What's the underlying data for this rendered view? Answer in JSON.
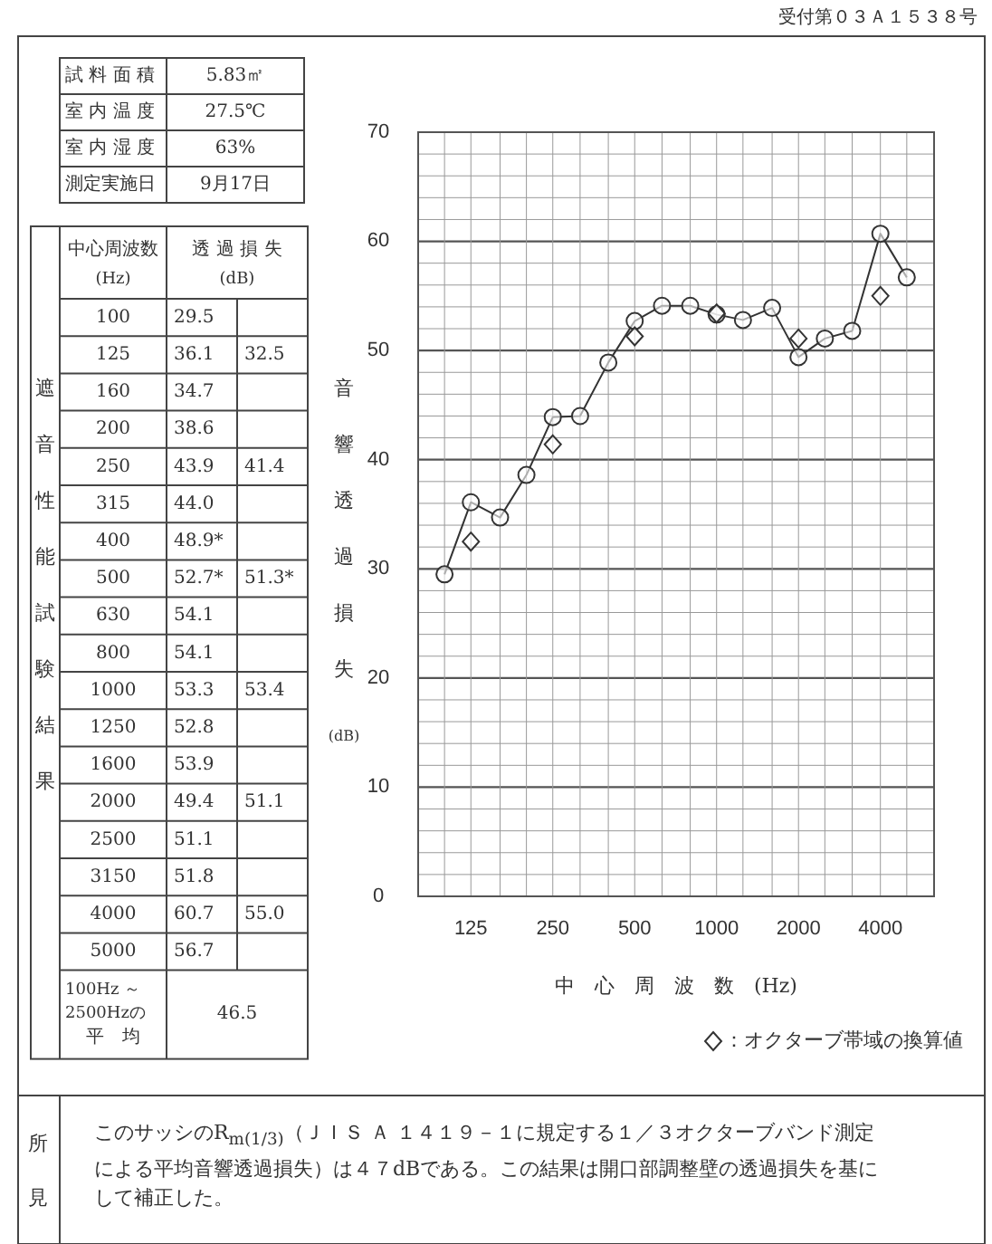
{
  "chart_data": {
    "type": "line",
    "log": "x",
    "grid": true,
    "legend": "bottom",
    "xlabel": "中　心　周　波　数　(Hz)",
    "ylabel": "音響透過損失",
    "xlim": [
      80,
      6300
    ],
    "ylim": [
      0,
      70
    ],
    "xticks": [
      {
        "value": 80,
        "label": null
      },
      {
        "value": 100,
        "label": null
      },
      125,
      {
        "value": 160,
        "label": null
      },
      {
        "value": 200,
        "label": null
      },
      250,
      {
        "value": 315,
        "label": null
      },
      {
        "value": 400,
        "label": null
      },
      500,
      {
        "value": 630,
        "label": null
      },
      {
        "value": 800,
        "label": null
      },
      1000,
      {
        "value": 1250,
        "label": null
      },
      {
        "value": 1600,
        "label": null
      },
      2000,
      {
        "value": 2500,
        "label": null
      },
      {
        "value": 3150,
        "label": null
      },
      4000,
      {
        "value": 5000,
        "label": null
      },
      {
        "value": 6300,
        "label": null
      }
    ],
    "yticks": [
      0,
      {
        "value": 2,
        "label": null
      },
      {
        "value": 4,
        "label": null
      },
      {
        "value": 6,
        "label": null
      },
      {
        "value": 8,
        "label": null
      },
      10,
      {
        "value": 12,
        "label": null
      },
      {
        "value": 14,
        "label": null
      },
      {
        "value": 16,
        "label": null
      },
      {
        "value": 18,
        "label": null
      },
      20,
      {
        "value": 22,
        "label": null
      },
      {
        "value": 24,
        "label": null
      },
      {
        "value": 26,
        "label": null
      },
      {
        "value": 28,
        "label": null
      },
      30,
      {
        "value": 32,
        "label": null
      },
      {
        "value": 34,
        "label": null
      },
      {
        "value": 36,
        "label": null
      },
      {
        "value": 38,
        "label": null
      },
      40,
      {
        "value": 42,
        "label": null
      },
      {
        "value": 44,
        "label": null
      },
      {
        "value": 46,
        "label": null
      },
      {
        "value": 48,
        "label": null
      },
      50,
      {
        "value": 52,
        "label": null
      },
      {
        "value": 54,
        "label": null
      },
      {
        "value": 56,
        "label": null
      },
      {
        "value": 58,
        "label": null
      },
      60,
      {
        "value": 62,
        "label": null
      },
      {
        "value": 64,
        "label": null
      },
      {
        "value": 66,
        "label": null
      },
      {
        "value": 68,
        "label": null
      },
      70
    ],
    "series": [
      {
        "type": "line",
        "color": "#333333",
        "marker": "circle",
        "line_style": "solid",
        "x": [
          100,
          125,
          160,
          200,
          250,
          315,
          400,
          500,
          630,
          800,
          1000,
          1250,
          1600,
          2000,
          2500,
          3150,
          4000,
          5000
        ],
        "values": [
          29.5,
          36.1,
          34.7,
          38.6,
          43.9,
          44.0,
          48.9,
          52.7,
          54.1,
          54.1,
          53.3,
          52.8,
          53.9,
          49.4,
          51.1,
          51.8,
          60.7,
          56.7
        ]
      },
      {
        "type": "scatter",
        "name": "：オクターブ帯域の換算値",
        "color": "#333333",
        "marker": "diamond",
        "x": [
          125,
          250,
          500,
          1000,
          2000,
          4000
        ],
        "values": [
          32.5,
          41.4,
          51.3,
          53.4,
          51.1,
          55.0
        ]
      }
    ],
    "annotations": [
      "受付第０３Ａ１５３８号",
      "試 料 面 積",
      "5.83㎡",
      "室 内 温 度",
      "27.5℃",
      "室 内 湿 度",
      "63%",
      "測定実施日",
      "9月17日",
      "中心周波数",
      "(Hz)",
      "透 過 損 失",
      "(dB)",
      "遮音性能試験結果",
      "100Hz ～",
      "2500Hzの",
      "平　均",
      "46.5",
      "所見",
      "このサッシのR$_{m(1/3)}$（ＪＩＳ Ａ １４１９－１に規定する１／３オクターブバンド測定による平均音響透過損失）は４７dBである。この結果は開口部調整壁の透過損失を基にして補正した。",
      "(dB)",
      "100",
      "29.5",
      "125",
      "36.1",
      "32.5",
      "160",
      "34.7",
      "200",
      "38.6",
      "250",
      "43.9",
      "41.4",
      "315",
      "44.0",
      "400",
      "48.9*",
      "500",
      "52.7*",
      "51.3*",
      "630",
      "54.1",
      "800",
      "54.1",
      "1000",
      "53.3",
      "53.4",
      "1250",
      "52.8",
      "1600",
      "53.9",
      "2000",
      "49.4",
      "51.1",
      "2500",
      "51.1",
      "3150",
      "51.8",
      "4000",
      "60.7",
      "55.0",
      "5000",
      "56.7"
    ]
  }
}
